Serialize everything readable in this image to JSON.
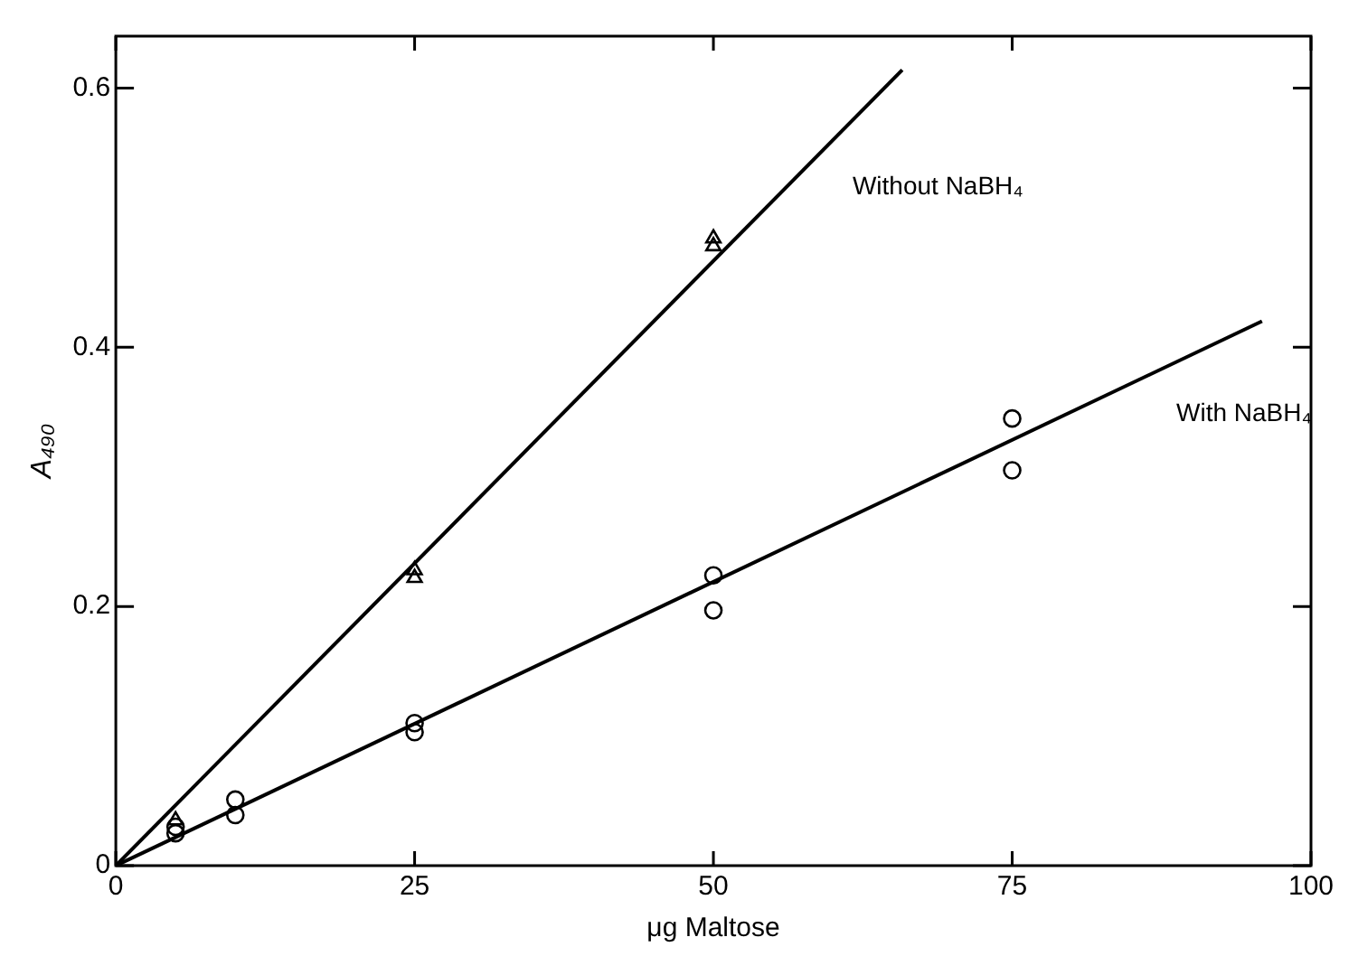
{
  "chart_data": {
    "type": "scatter",
    "xlabel": "μg Maltose",
    "ylabel": "A₄₉₀",
    "xlim": [
      0,
      100
    ],
    "ylim": [
      0,
      0.64
    ],
    "xticks": [
      0,
      25,
      50,
      75,
      100
    ],
    "yticks": [
      0,
      0.2,
      0.4,
      0.6
    ],
    "grid": false,
    "legend": false,
    "series": [
      {
        "type": "scatter",
        "marker": "triangle",
        "color": "#000000",
        "x": [
          5,
          25,
          25,
          50,
          50
        ],
        "values": [
          0.035,
          0.222,
          0.228,
          0.484,
          0.478
        ]
      },
      {
        "type": "scatter",
        "marker": "circle",
        "color": "#000000",
        "x": [
          5,
          5,
          10,
          10,
          25,
          25,
          50,
          50,
          75,
          75
        ],
        "values": [
          0.03,
          0.025,
          0.051,
          0.039,
          0.11,
          0.103,
          0.224,
          0.197,
          0.345,
          0.305
        ]
      },
      {
        "type": "line",
        "name": "Without NaBH₄",
        "color": "#000000",
        "x": [
          0,
          65.8
        ],
        "values": [
          0,
          0.614
        ]
      },
      {
        "type": "line",
        "name": "With NaBH₄",
        "color": "#000000",
        "x": [
          0,
          95.9
        ],
        "values": [
          0,
          0.42
        ]
      }
    ]
  }
}
